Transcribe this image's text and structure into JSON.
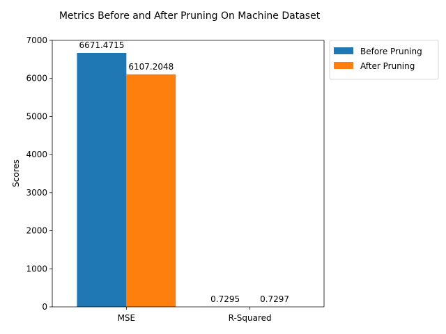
{
  "chart_data": {
    "type": "bar",
    "title": "Metrics Before and After Pruning On Machine Dataset",
    "xlabel": "",
    "ylabel": "Scores",
    "categories": [
      "MSE",
      "R-Squared"
    ],
    "series": [
      {
        "name": "Before Pruning",
        "values": [
          6671.4715,
          0.7295
        ],
        "labels": [
          "6671.4715",
          "0.7295"
        ],
        "color": "#1f77b4"
      },
      {
        "name": "After Pruning",
        "values": [
          6107.2048,
          0.7297
        ],
        "labels": [
          "6107.2048",
          "0.7297"
        ],
        "color": "#ff7f0e"
      }
    ],
    "ylim": [
      0,
      7000
    ],
    "yticks": [
      0,
      1000,
      2000,
      3000,
      4000,
      5000,
      6000,
      7000
    ],
    "ytick_labels": [
      "0",
      "1000",
      "2000",
      "3000",
      "4000",
      "5000",
      "6000",
      "7000"
    ],
    "grid": false,
    "legend_position": "outside-top-right"
  }
}
